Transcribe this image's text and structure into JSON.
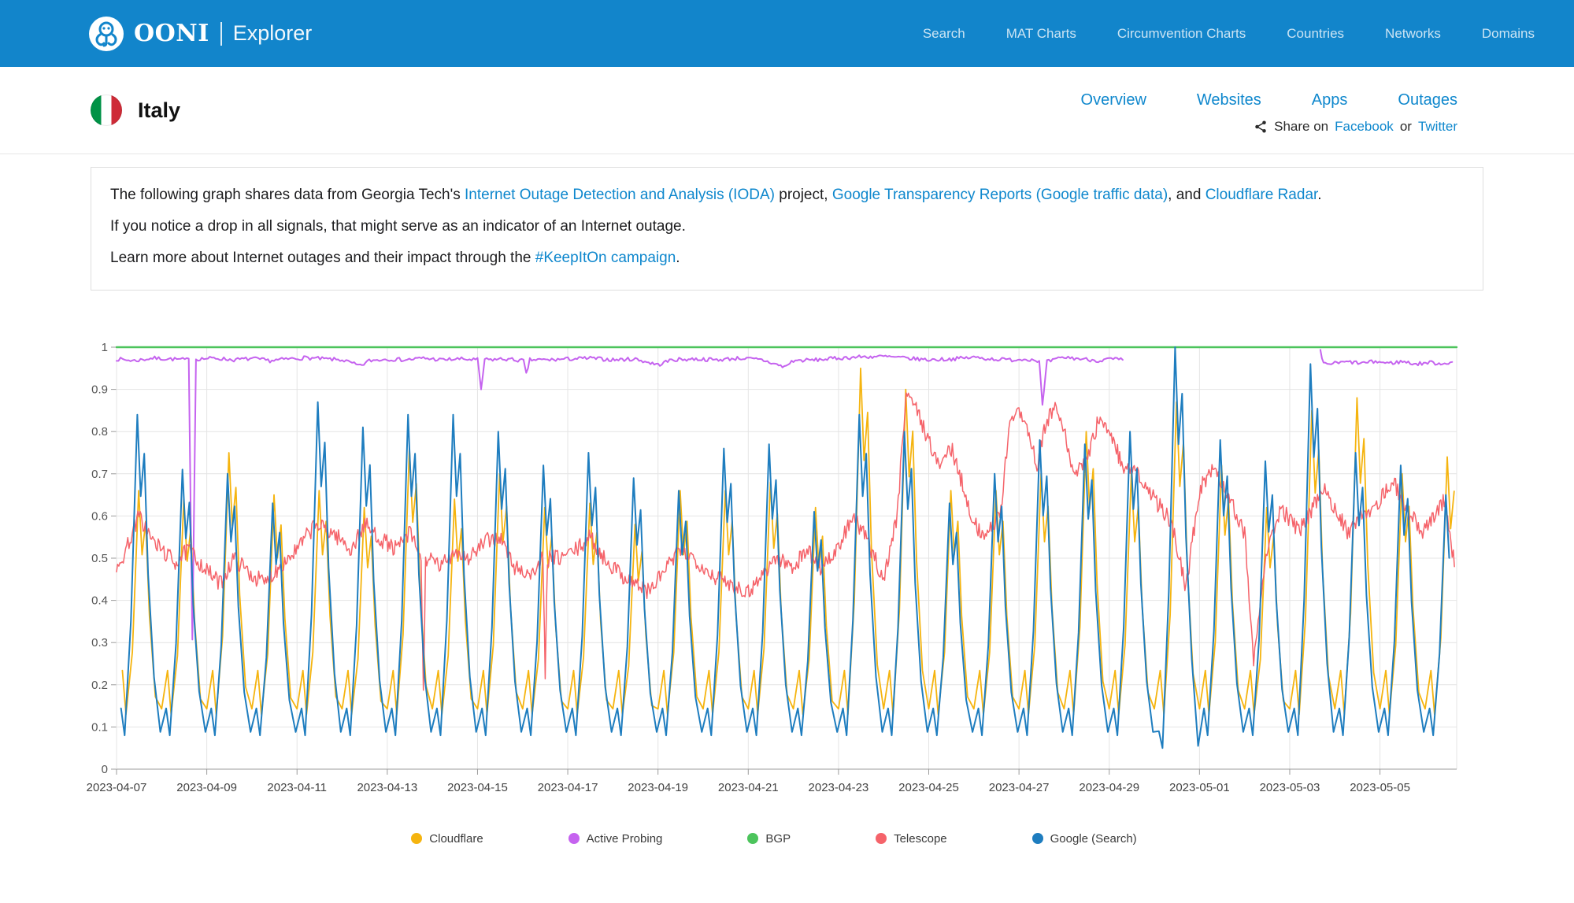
{
  "header": {
    "brand": {
      "name": "OONI",
      "product": "Explorer"
    },
    "nav": [
      "Search",
      "MAT Charts",
      "Circumvention Charts",
      "Countries",
      "Networks",
      "Domains"
    ]
  },
  "country": {
    "name": "Italy",
    "flag_colors": [
      "#009246",
      "#ffffff",
      "#ce2b37"
    ],
    "tabs": [
      "Overview",
      "Websites",
      "Apps",
      "Outages"
    ],
    "share": {
      "prefix": "Share on",
      "facebook": "Facebook",
      "or": "or",
      "twitter": "Twitter"
    }
  },
  "info": {
    "p1": [
      {
        "text": "The following graph shares data from Georgia Tech's "
      },
      {
        "text": "Internet Outage Detection and Analysis (IODA)",
        "link": true
      },
      {
        "text": " project, "
      },
      {
        "text": "Google Transparency Reports (Google traffic data)",
        "link": true
      },
      {
        "text": ", and "
      },
      {
        "text": "Cloudflare Radar",
        "link": true
      },
      {
        "text": "."
      }
    ],
    "p2": "If you notice a drop in all signals, that might serve as an indicator of an Internet outage.",
    "p3": [
      {
        "text": "Learn more about Internet outages and their impact through the "
      },
      {
        "text": "#KeepItOn campaign",
        "link": true
      },
      {
        "text": "."
      }
    ]
  },
  "chart_data": {
    "type": "line",
    "title": "",
    "xlabel": "",
    "ylabel": "",
    "x_axis": {
      "start_date": "2023-04-07",
      "tick_interval_days": 2,
      "tick_labels": [
        "2023-04-07",
        "2023-04-09",
        "2023-04-11",
        "2023-04-13",
        "2023-04-15",
        "2023-04-17",
        "2023-04-19",
        "2023-04-21",
        "2023-04-23",
        "2023-04-25",
        "2023-04-27",
        "2023-04-29",
        "2023-05-01",
        "2023-05-03",
        "2023-05-05"
      ],
      "max_day": 29.7
    },
    "y_axis": {
      "min": 0,
      "max": 1,
      "tick_labels": [
        "0",
        "0.1",
        "0.2",
        "0.3",
        "0.4",
        "0.5",
        "0.6",
        "0.7",
        "0.8",
        "0.9",
        "1"
      ]
    },
    "grid": true,
    "legend_position": "bottom",
    "noise_seed": 7,
    "legend": [
      {
        "label": "Cloudflare",
        "color": "#f5b40f"
      },
      {
        "label": "Active Probing",
        "color": "#c563ef"
      },
      {
        "label": "BGP",
        "color": "#4cc45c"
      },
      {
        "label": "Telescope",
        "color": "#f5636a"
      },
      {
        "label": "Google (Search)",
        "color": "#1e7dbf"
      }
    ],
    "series": [
      {
        "name": "Cloudflare",
        "color": "#f5b40f",
        "width": 1.8,
        "pattern": "daily-wave",
        "trough": 0.13,
        "day_offset": 0.03,
        "end_day": 29.65,
        "daily_peaks": [
          0.66,
          0.64,
          0.75,
          0.65,
          0.66,
          0.62,
          0.76,
          0.64,
          0.7,
          0.62,
          0.63,
          0.58,
          0.66,
          0.66,
          0.68,
          0.62,
          0.95,
          0.9,
          0.66,
          0.66,
          0.7,
          0.8,
          0.7,
          0.87,
          0.72,
          0.62,
          0.85,
          0.88,
          0.7,
          0.74
        ],
        "trough_overrides": {}
      },
      {
        "name": "Active Probing",
        "color": "#c563ef",
        "width": 2,
        "pattern": "points",
        "jitter": 0.0045,
        "points": [
          [
            0,
            0.972
          ],
          [
            0.4,
            0.968
          ],
          [
            0.8,
            0.974
          ],
          [
            1.2,
            0.972
          ],
          [
            1.6,
            0.97
          ],
          [
            1.68,
            0.31
          ],
          [
            1.76,
            0.972
          ],
          [
            2.2,
            0.974
          ],
          [
            2.6,
            0.97
          ],
          [
            3,
            0.973
          ],
          [
            3.4,
            0.968
          ],
          [
            3.8,
            0.972
          ],
          [
            4.2,
            0.975
          ],
          [
            4.6,
            0.972
          ],
          [
            5,
            0.97
          ],
          [
            5.4,
            0.955
          ],
          [
            5.6,
            0.968
          ],
          [
            6,
            0.972
          ],
          [
            6.4,
            0.97
          ],
          [
            6.8,
            0.974
          ],
          [
            7.2,
            0.97
          ],
          [
            7.6,
            0.972
          ],
          [
            8,
            0.97
          ],
          [
            8.08,
            0.9
          ],
          [
            8.16,
            0.97
          ],
          [
            8.6,
            0.972
          ],
          [
            9.02,
            0.968
          ],
          [
            9.08,
            0.935
          ],
          [
            9.16,
            0.97
          ],
          [
            9.6,
            0.97
          ],
          [
            10,
            0.972
          ],
          [
            10.5,
            0.974
          ],
          [
            11,
            0.97
          ],
          [
            11.5,
            0.972
          ],
          [
            12,
            0.958
          ],
          [
            12.3,
            0.97
          ],
          [
            12.8,
            0.972
          ],
          [
            13.3,
            0.97
          ],
          [
            13.8,
            0.974
          ],
          [
            14.3,
            0.97
          ],
          [
            14.8,
            0.953
          ],
          [
            15,
            0.968
          ],
          [
            15.5,
            0.97
          ],
          [
            16,
            0.974
          ],
          [
            16.5,
            0.977
          ],
          [
            17,
            0.978
          ],
          [
            17.5,
            0.974
          ],
          [
            18,
            0.97
          ],
          [
            18.5,
            0.972
          ],
          [
            19,
            0.976
          ],
          [
            19.4,
            0.972
          ],
          [
            19.8,
            0.97
          ],
          [
            20.2,
            0.972
          ],
          [
            20.45,
            0.968
          ],
          [
            20.52,
            0.86
          ],
          [
            20.62,
            0.965
          ],
          [
            21,
            0.976
          ],
          [
            21.4,
            0.972
          ],
          [
            21.8,
            0.968
          ],
          [
            22,
            0.972
          ],
          [
            22.3,
            0.97
          ],
          null,
          [
            26.68,
            0.99
          ],
          [
            26.75,
            0.96
          ],
          [
            27,
            0.962
          ],
          [
            27.3,
            0.965
          ],
          [
            27.6,
            0.962
          ],
          [
            27.9,
            0.966
          ],
          [
            28.2,
            0.962
          ],
          [
            28.5,
            0.966
          ],
          [
            28.8,
            0.96
          ],
          [
            29.1,
            0.964
          ],
          [
            29.35,
            0.961
          ],
          [
            29.6,
            0.965
          ]
        ]
      },
      {
        "name": "BGP",
        "color": "#4cc45c",
        "width": 2.4,
        "pattern": "points",
        "jitter": 0,
        "points": [
          [
            0,
            1
          ],
          [
            29.7,
            1
          ]
        ]
      },
      {
        "name": "Telescope",
        "color": "#f5636a",
        "width": 1.5,
        "pattern": "points",
        "jitter": 0.02,
        "points": [
          [
            0,
            0.46
          ],
          [
            0.2,
            0.52
          ],
          [
            0.5,
            0.6
          ],
          [
            0.8,
            0.54
          ],
          [
            1,
            0.52
          ],
          [
            1.3,
            0.49
          ],
          [
            1.6,
            0.52
          ],
          [
            2,
            0.47
          ],
          [
            2.3,
            0.44
          ],
          [
            2.6,
            0.5
          ],
          [
            3,
            0.46
          ],
          [
            3.3,
            0.44
          ],
          [
            3.6,
            0.48
          ],
          [
            4,
            0.52
          ],
          [
            4.4,
            0.58
          ],
          [
            4.8,
            0.56
          ],
          [
            5.2,
            0.52
          ],
          [
            5.5,
            0.58
          ],
          [
            5.8,
            0.55
          ],
          [
            6.2,
            0.52
          ],
          [
            6.5,
            0.56
          ],
          [
            6.75,
            0.5
          ],
          [
            6.8,
            0.17
          ],
          [
            6.85,
            0.5
          ],
          [
            7.2,
            0.48
          ],
          [
            7.5,
            0.52
          ],
          [
            7.8,
            0.5
          ],
          [
            8.2,
            0.54
          ],
          [
            8.5,
            0.55
          ],
          [
            8.8,
            0.48
          ],
          [
            9.2,
            0.46
          ],
          [
            9.45,
            0.5
          ],
          [
            9.5,
            0.21
          ],
          [
            9.55,
            0.5
          ],
          [
            9.8,
            0.5
          ],
          [
            10.2,
            0.52
          ],
          [
            10.5,
            0.55
          ],
          [
            10.8,
            0.5
          ],
          [
            11.2,
            0.46
          ],
          [
            11.5,
            0.44
          ],
          [
            11.8,
            0.42
          ],
          [
            12.2,
            0.48
          ],
          [
            12.5,
            0.52
          ],
          [
            12.8,
            0.5
          ],
          [
            13.2,
            0.46
          ],
          [
            13.6,
            0.44
          ],
          [
            14,
            0.42
          ],
          [
            14.3,
            0.46
          ],
          [
            14.6,
            0.5
          ],
          [
            15,
            0.48
          ],
          [
            15.3,
            0.52
          ],
          [
            15.6,
            0.48
          ],
          [
            16,
            0.52
          ],
          [
            16.3,
            0.6
          ],
          [
            16.6,
            0.55
          ],
          [
            17,
            0.45
          ],
          [
            17.3,
            0.6
          ],
          [
            17.5,
            0.9
          ],
          [
            17.7,
            0.86
          ],
          [
            18,
            0.78
          ],
          [
            18.2,
            0.72
          ],
          [
            18.5,
            0.76
          ],
          [
            18.8,
            0.66
          ],
          [
            19,
            0.58
          ],
          [
            19.3,
            0.55
          ],
          [
            19.6,
            0.62
          ],
          [
            19.8,
            0.82
          ],
          [
            20,
            0.86
          ],
          [
            20.2,
            0.8
          ],
          [
            20.4,
            0.72
          ],
          [
            20.6,
            0.82
          ],
          [
            20.8,
            0.86
          ],
          [
            21,
            0.8
          ],
          [
            21.2,
            0.7
          ],
          [
            21.5,
            0.73
          ],
          [
            21.8,
            0.84
          ],
          [
            22,
            0.8
          ],
          [
            22.3,
            0.72
          ],
          [
            22.6,
            0.7
          ],
          [
            23,
            0.64
          ],
          [
            23.4,
            0.58
          ],
          [
            23.7,
            0.43
          ],
          [
            24,
            0.66
          ],
          [
            24.3,
            0.72
          ],
          [
            24.6,
            0.66
          ],
          [
            25,
            0.56
          ],
          [
            25.2,
            0.26
          ],
          [
            25.45,
            0.5
          ],
          [
            25.8,
            0.62
          ],
          [
            26.2,
            0.56
          ],
          [
            26.5,
            0.62
          ],
          [
            26.8,
            0.66
          ],
          [
            27,
            0.62
          ],
          [
            27.3,
            0.56
          ],
          [
            27.6,
            0.6
          ],
          [
            28,
            0.64
          ],
          [
            28.3,
            0.68
          ],
          [
            28.6,
            0.62
          ],
          [
            28.9,
            0.56
          ],
          [
            29.2,
            0.6
          ],
          [
            29.45,
            0.64
          ],
          [
            29.65,
            0.48
          ]
        ]
      },
      {
        "name": "Google (Search)",
        "color": "#1e7dbf",
        "width": 2,
        "pattern": "daily-wave",
        "trough": 0.08,
        "day_offset": 0,
        "end_day": 29.6,
        "daily_peaks": [
          0.84,
          0.71,
          0.7,
          0.63,
          0.87,
          0.81,
          0.84,
          0.84,
          0.8,
          0.72,
          0.75,
          0.69,
          0.66,
          0.76,
          0.77,
          0.61,
          0.84,
          0.8,
          0.63,
          0.7,
          0.78,
          0.77,
          0.8,
          1.0,
          0.78,
          0.73,
          0.96,
          0.75,
          0.72,
          0.65
        ],
        "trough_overrides": {
          "23": 0.05
        }
      }
    ]
  }
}
